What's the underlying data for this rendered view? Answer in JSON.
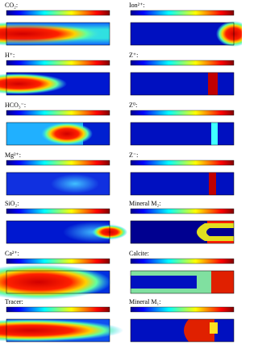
{
  "panels": [
    {
      "label": "CO₂:"
    },
    {
      "label": "H⁺:"
    },
    {
      "label": "HCO₃⁻:"
    },
    {
      "label": "Mg²⁺:"
    },
    {
      "label": "SiO₂:"
    },
    {
      "label": "Ca²⁺:"
    },
    {
      "label": "Tracer:"
    },
    {
      "label": "Ion²⁺:"
    },
    {
      "label": "Z⁺:"
    },
    {
      "label": "Z⁰:"
    },
    {
      "label": "Z⁻:"
    },
    {
      "label": "Mineral M₂:"
    },
    {
      "label": "Calcite:"
    },
    {
      "label": "Mineral M₁:"
    }
  ]
}
